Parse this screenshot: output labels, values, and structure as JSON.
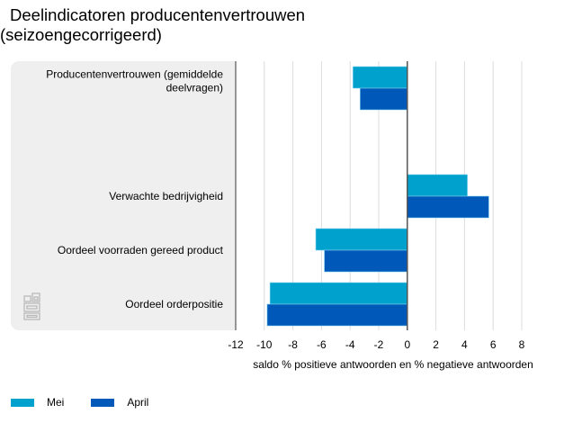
{
  "chart_data": {
    "type": "bar",
    "orientation": "horizontal",
    "title": "Deelindicatoren producentenvertrouwen",
    "subtitle": "(seizoengecorrigeerd)",
    "categories": [
      "Producentenvertrouwen (gemiddelde deelvragen)",
      "",
      "Verwachte bedrijvigheid",
      "Oordeel voorraden gereed product",
      "Oordeel orderpositie"
    ],
    "category_lines": [
      [
        "Producentenvertrouwen (gemiddelde",
        "deelvragen)"
      ],
      [],
      [
        "Verwachte bedrijvigheid"
      ],
      [
        "Oordeel voorraden gereed product"
      ],
      [
        "Oordeel orderpositie"
      ]
    ],
    "series": [
      {
        "name": "Mei",
        "color": "#00a1cd",
        "values": [
          -3.8,
          null,
          4.2,
          -6.4,
          -9.6
        ]
      },
      {
        "name": "April",
        "color": "#0058b8",
        "values": [
          -3.3,
          null,
          5.7,
          -5.8,
          -9.8
        ]
      }
    ],
    "xlabel": "saldo % positieve antwoorden en % negatieve antwoorden",
    "ylabel": "",
    "xlim": [
      -12,
      10
    ],
    "xticks": [
      -12,
      -10,
      -8,
      -6,
      -4,
      -2,
      0,
      2,
      4,
      6,
      8
    ],
    "xtick_labels": [
      "-12",
      "-10",
      "-8",
      "-6",
      "-4",
      "-2",
      "0",
      "2",
      "4",
      "6",
      "8"
    ],
    "grid": true,
    "legend_position": "bottom-left"
  },
  "header": {
    "title": "Deelindicatoren producentenvertrouwen",
    "subtitle": "(seizoengecorrigeerd)"
  },
  "legend": {
    "items": [
      {
        "label": "Mei",
        "color": "#00a1cd"
      },
      {
        "label": "April",
        "color": "#0058b8"
      }
    ]
  },
  "logo": {
    "icon": "cbs-logo-icon"
  }
}
